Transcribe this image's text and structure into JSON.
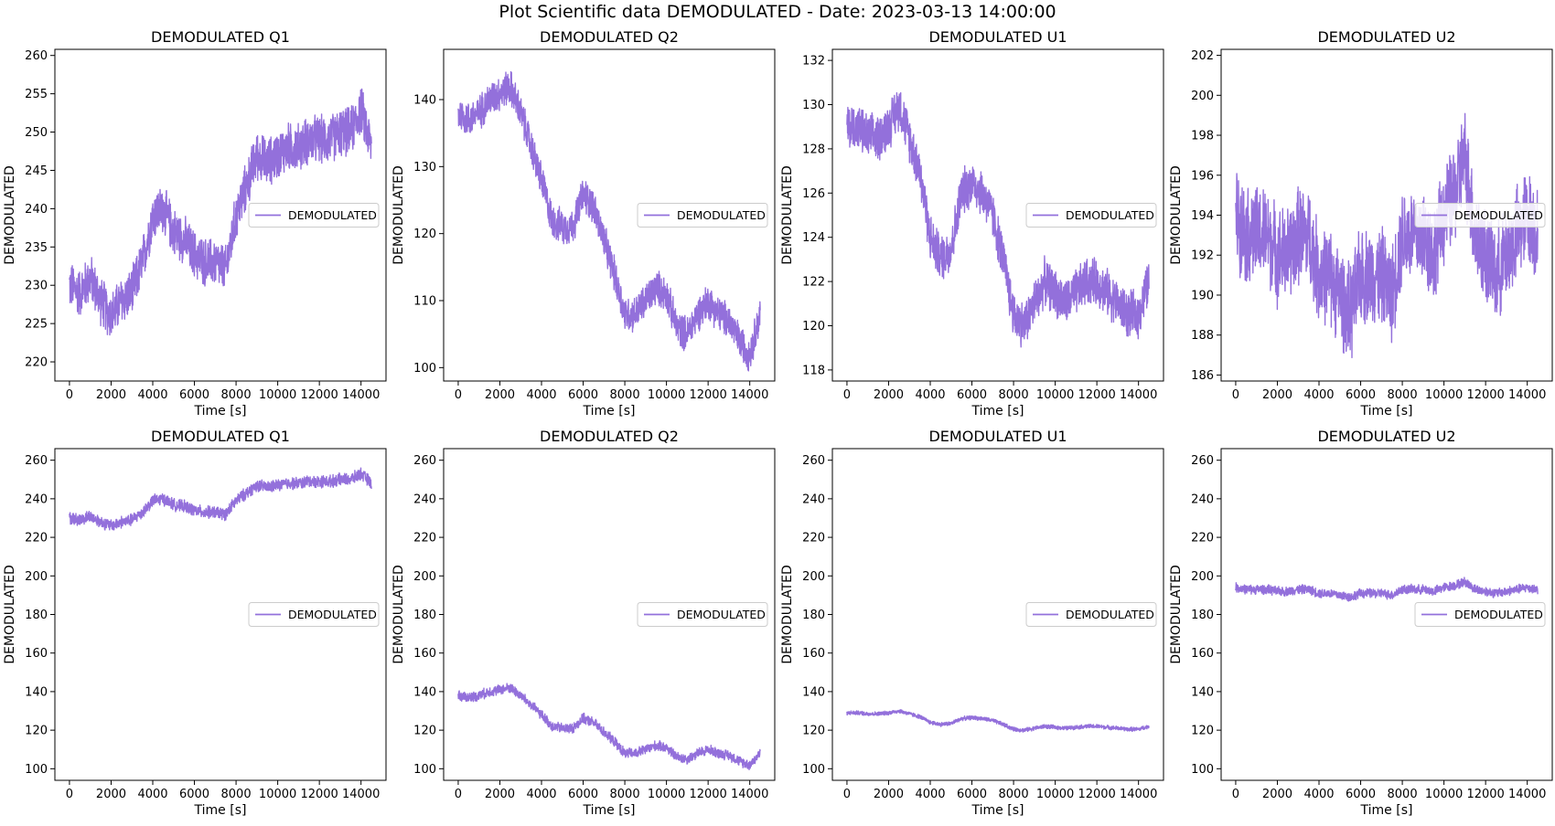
{
  "figure": {
    "suptitle": "Plot Scientific data DEMODULATED - Date: 2023-03-13 14:00:00",
    "line_color": "#9370db"
  },
  "chart_data": [
    {
      "type": "line",
      "title": "DEMODULATED Q1",
      "xlabel": "Time [s]",
      "ylabel": "DEMODULATED",
      "xlim": [
        -700,
        15200
      ],
      "ylim": [
        217.5,
        260.8
      ],
      "xticks": [
        0,
        2000,
        4000,
        6000,
        8000,
        10000,
        12000,
        14000
      ],
      "yticks": [
        220,
        225,
        230,
        235,
        240,
        245,
        250,
        255,
        260
      ],
      "legend": "center right",
      "series": [
        {
          "name": "DEMODULATED",
          "x": [
            0,
            500,
            1000,
            1500,
            2000,
            2500,
            3000,
            3500,
            4000,
            4500,
            5000,
            5500,
            6000,
            6500,
            7000,
            7500,
            8000,
            8500,
            9000,
            9500,
            10000,
            10500,
            11000,
            11500,
            12000,
            12500,
            13000,
            13500,
            14000,
            14500
          ],
          "y": [
            230,
            229,
            231,
            228,
            226,
            228,
            229,
            233,
            239,
            240,
            237,
            236,
            234,
            233,
            233,
            232,
            239,
            243,
            247,
            246,
            247,
            248,
            248,
            249,
            249,
            249,
            250,
            250,
            253,
            248
          ],
          "band": 3
        }
      ]
    },
    {
      "type": "line",
      "title": "DEMODULATED Q2",
      "xlabel": "Time [s]",
      "ylabel": "DEMODULATED",
      "xlim": [
        -700,
        15200
      ],
      "ylim": [
        98,
        147.5
      ],
      "xticks": [
        0,
        2000,
        4000,
        6000,
        8000,
        10000,
        12000,
        14000
      ],
      "yticks": [
        100,
        110,
        120,
        130,
        140
      ],
      "legend": "center right",
      "series": [
        {
          "name": "DEMODULATED",
          "x": [
            0,
            500,
            1000,
            1500,
            2000,
            2500,
            3000,
            3500,
            4000,
            4500,
            5000,
            5500,
            6000,
            6500,
            7000,
            7500,
            8000,
            8500,
            9000,
            9500,
            10000,
            10500,
            11000,
            11500,
            12000,
            12500,
            13000,
            13500,
            14000,
            14500
          ],
          "y": [
            138,
            137,
            138,
            140,
            141,
            142,
            138,
            133,
            128,
            122,
            121,
            121,
            126,
            124,
            119,
            114,
            108,
            108,
            110,
            112,
            111,
            106,
            105,
            108,
            110,
            108,
            107,
            104,
            102,
            108
          ],
          "band": 2.5
        }
      ]
    },
    {
      "type": "line",
      "title": "DEMODULATED U1",
      "xlabel": "Time [s]",
      "ylabel": "DEMODULATED",
      "xlim": [
        -700,
        15200
      ],
      "ylim": [
        117.5,
        132.5
      ],
      "xticks": [
        0,
        2000,
        4000,
        6000,
        8000,
        10000,
        12000,
        14000
      ],
      "yticks": [
        118,
        120,
        122,
        124,
        126,
        128,
        130,
        132
      ],
      "legend": "center right",
      "series": [
        {
          "name": "DEMODULATED",
          "x": [
            0,
            500,
            1000,
            1500,
            2000,
            2500,
            3000,
            3500,
            4000,
            4500,
            5000,
            5500,
            6000,
            6500,
            7000,
            7500,
            8000,
            8500,
            9000,
            9500,
            10000,
            10500,
            11000,
            11500,
            12000,
            12500,
            13000,
            13500,
            14000,
            14500
          ],
          "y": [
            129,
            129,
            128.5,
            128.5,
            129,
            130,
            128.5,
            127,
            124,
            123,
            123.5,
            126,
            126.5,
            126,
            125,
            123,
            120.5,
            120,
            121,
            122,
            121.5,
            121,
            121.5,
            122,
            122,
            121.5,
            121,
            120.5,
            120.5,
            122
          ],
          "band": 1
        }
      ]
    },
    {
      "type": "line",
      "title": "DEMODULATED U2",
      "xlabel": "Time [s]",
      "ylabel": "DEMODULATED",
      "xlim": [
        -700,
        15200
      ],
      "ylim": [
        185.7,
        202.3
      ],
      "xticks": [
        0,
        2000,
        4000,
        6000,
        8000,
        10000,
        12000,
        14000
      ],
      "yticks": [
        186,
        188,
        190,
        192,
        194,
        196,
        198,
        200,
        202
      ],
      "legend": "center right",
      "series": [
        {
          "name": "DEMODULATED",
          "x": [
            0,
            500,
            1000,
            1500,
            2000,
            2500,
            3000,
            3500,
            4000,
            4500,
            5000,
            5500,
            6000,
            6500,
            7000,
            7500,
            8000,
            8500,
            9000,
            9500,
            10000,
            10500,
            11000,
            11500,
            12000,
            12500,
            13000,
            13500,
            14000,
            14500
          ],
          "y": [
            194,
            193,
            193,
            193,
            192,
            192,
            193,
            193,
            191,
            191,
            190,
            189,
            191,
            191,
            191,
            190,
            193,
            193,
            193,
            192,
            194,
            195,
            197,
            193,
            192,
            191,
            192,
            193,
            194,
            193
          ],
          "band": 2.3
        }
      ]
    },
    {
      "type": "line",
      "title": "DEMODULATED Q1",
      "xlabel": "Time [s]",
      "ylabel": "DEMODULATED",
      "xlim": [
        -700,
        15200
      ],
      "ylim": [
        94,
        266
      ],
      "xticks": [
        0,
        2000,
        4000,
        6000,
        8000,
        10000,
        12000,
        14000
      ],
      "yticks": [
        100,
        120,
        140,
        160,
        180,
        200,
        220,
        240,
        260
      ],
      "legend": "center right",
      "series": [
        {
          "name": "DEMODULATED",
          "x": [
            0,
            500,
            1000,
            1500,
            2000,
            2500,
            3000,
            3500,
            4000,
            4500,
            5000,
            5500,
            6000,
            6500,
            7000,
            7500,
            8000,
            8500,
            9000,
            9500,
            10000,
            10500,
            11000,
            11500,
            12000,
            12500,
            13000,
            13500,
            14000,
            14500
          ],
          "y": [
            230,
            229,
            231,
            228,
            226,
            228,
            229,
            233,
            239,
            240,
            237,
            236,
            234,
            233,
            233,
            232,
            239,
            243,
            247,
            246,
            247,
            248,
            248,
            249,
            249,
            249,
            250,
            250,
            253,
            248
          ],
          "band": 3
        }
      ]
    },
    {
      "type": "line",
      "title": "DEMODULATED Q2",
      "xlabel": "Time [s]",
      "ylabel": "DEMODULATED",
      "xlim": [
        -700,
        15200
      ],
      "ylim": [
        94,
        266
      ],
      "xticks": [
        0,
        2000,
        4000,
        6000,
        8000,
        10000,
        12000,
        14000
      ],
      "yticks": [
        100,
        120,
        140,
        160,
        180,
        200,
        220,
        240,
        260
      ],
      "legend": "center right",
      "series": [
        {
          "name": "DEMODULATED",
          "x": [
            0,
            500,
            1000,
            1500,
            2000,
            2500,
            3000,
            3500,
            4000,
            4500,
            5000,
            5500,
            6000,
            6500,
            7000,
            7500,
            8000,
            8500,
            9000,
            9500,
            10000,
            10500,
            11000,
            11500,
            12000,
            12500,
            13000,
            13500,
            14000,
            14500
          ],
          "y": [
            138,
            137,
            138,
            140,
            141,
            142,
            138,
            133,
            128,
            122,
            121,
            121,
            126,
            124,
            119,
            114,
            108,
            108,
            110,
            112,
            111,
            106,
            105,
            108,
            110,
            108,
            107,
            104,
            102,
            108
          ],
          "band": 2.5
        }
      ]
    },
    {
      "type": "line",
      "title": "DEMODULATED U1",
      "xlabel": "Time [s]",
      "ylabel": "DEMODULATED",
      "xlim": [
        -700,
        15200
      ],
      "ylim": [
        94,
        266
      ],
      "xticks": [
        0,
        2000,
        4000,
        6000,
        8000,
        10000,
        12000,
        14000
      ],
      "yticks": [
        100,
        120,
        140,
        160,
        180,
        200,
        220,
        240,
        260
      ],
      "legend": "center right",
      "series": [
        {
          "name": "DEMODULATED",
          "x": [
            0,
            500,
            1000,
            1500,
            2000,
            2500,
            3000,
            3500,
            4000,
            4500,
            5000,
            5500,
            6000,
            6500,
            7000,
            7500,
            8000,
            8500,
            9000,
            9500,
            10000,
            10500,
            11000,
            11500,
            12000,
            12500,
            13000,
            13500,
            14000,
            14500
          ],
          "y": [
            129,
            129,
            128.5,
            128.5,
            129,
            130,
            128.5,
            127,
            124,
            123,
            123.5,
            126,
            126.5,
            126,
            125,
            123,
            120.5,
            120,
            121,
            122,
            121.5,
            121,
            121.5,
            122,
            122,
            121.5,
            121,
            120.5,
            120.5,
            122
          ],
          "band": 1
        }
      ]
    },
    {
      "type": "line",
      "title": "DEMODULATED U2",
      "xlabel": "Time [s]",
      "ylabel": "DEMODULATED",
      "xlim": [
        -700,
        15200
      ],
      "ylim": [
        94,
        266
      ],
      "xticks": [
        0,
        2000,
        4000,
        6000,
        8000,
        10000,
        12000,
        14000
      ],
      "yticks": [
        100,
        120,
        140,
        160,
        180,
        200,
        220,
        240,
        260
      ],
      "legend": "center right",
      "series": [
        {
          "name": "DEMODULATED",
          "x": [
            0,
            500,
            1000,
            1500,
            2000,
            2500,
            3000,
            3500,
            4000,
            4500,
            5000,
            5500,
            6000,
            6500,
            7000,
            7500,
            8000,
            8500,
            9000,
            9500,
            10000,
            10500,
            11000,
            11500,
            12000,
            12500,
            13000,
            13500,
            14000,
            14500
          ],
          "y": [
            194,
            193,
            193,
            193,
            192,
            192,
            193,
            193,
            191,
            191,
            190,
            189,
            191,
            191,
            191,
            190,
            193,
            193,
            193,
            192,
            194,
            195,
            197,
            193,
            192,
            191,
            192,
            193,
            194,
            193
          ],
          "band": 2.3
        }
      ]
    }
  ]
}
